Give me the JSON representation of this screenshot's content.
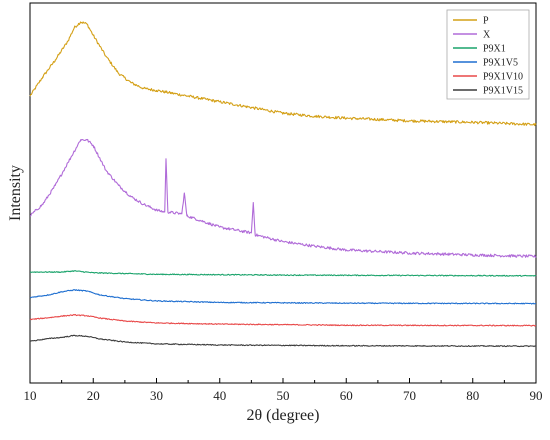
{
  "chart_data": {
    "type": "line",
    "xlabel": "2θ (degree)",
    "ylabel": "Intensity",
    "xlim": [
      10,
      90
    ],
    "x_ticks": [
      10,
      20,
      30,
      40,
      50,
      60,
      70,
      80,
      90
    ],
    "y_ticks_labeled": false,
    "legend_position": "top-right",
    "grid": false,
    "series": [
      {
        "name": "P",
        "color": "#d4a017",
        "points": [
          [
            10,
            0.755
          ],
          [
            12,
            0.805
          ],
          [
            14,
            0.85
          ],
          [
            16,
            0.9
          ],
          [
            17,
            0.935
          ],
          [
            18,
            0.95
          ],
          [
            19,
            0.945
          ],
          [
            20,
            0.915
          ],
          [
            22,
            0.86
          ],
          [
            24,
            0.815
          ],
          [
            26,
            0.79
          ],
          [
            28,
            0.775
          ],
          [
            30,
            0.77
          ],
          [
            35,
            0.755
          ],
          [
            40,
            0.74
          ],
          [
            45,
            0.725
          ],
          [
            50,
            0.71
          ],
          [
            55,
            0.702
          ],
          [
            60,
            0.697
          ],
          [
            70,
            0.69
          ],
          [
            80,
            0.686
          ],
          [
            90,
            0.68
          ]
        ]
      },
      {
        "name": "X",
        "color": "#b06bd8",
        "points": [
          [
            10,
            0.44
          ],
          [
            12,
            0.47
          ],
          [
            14,
            0.52
          ],
          [
            16,
            0.58
          ],
          [
            17,
            0.61
          ],
          [
            18,
            0.64
          ],
          [
            19,
            0.64
          ],
          [
            20,
            0.625
          ],
          [
            22,
            0.56
          ],
          [
            24,
            0.52
          ],
          [
            26,
            0.49
          ],
          [
            28,
            0.47
          ],
          [
            30,
            0.455
          ],
          [
            31.3,
            0.45
          ],
          [
            31.5,
            0.59
          ],
          [
            31.8,
            0.45
          ],
          [
            34,
            0.445
          ],
          [
            34.4,
            0.5
          ],
          [
            34.8,
            0.44
          ],
          [
            40,
            0.41
          ],
          [
            45,
            0.395
          ],
          [
            45.3,
            0.475
          ],
          [
            45.6,
            0.39
          ],
          [
            50,
            0.372
          ],
          [
            55,
            0.36
          ],
          [
            60,
            0.35
          ],
          [
            70,
            0.342
          ],
          [
            80,
            0.337
          ],
          [
            90,
            0.333
          ]
        ]
      },
      {
        "name": "P9X1",
        "color": "#1aa36b",
        "points": [
          [
            10,
            0.292
          ],
          [
            15,
            0.292
          ],
          [
            17,
            0.295
          ],
          [
            20,
            0.29
          ],
          [
            30,
            0.286
          ],
          [
            50,
            0.284
          ],
          [
            70,
            0.283
          ],
          [
            90,
            0.282
          ]
        ]
      },
      {
        "name": "P9X1V5",
        "color": "#1f6fd0",
        "points": [
          [
            10,
            0.225
          ],
          [
            13,
            0.232
          ],
          [
            15,
            0.24
          ],
          [
            17,
            0.245
          ],
          [
            19,
            0.242
          ],
          [
            21,
            0.232
          ],
          [
            25,
            0.222
          ],
          [
            30,
            0.216
          ],
          [
            40,
            0.212
          ],
          [
            60,
            0.21
          ],
          [
            90,
            0.209
          ]
        ]
      },
      {
        "name": "P9X1V10",
        "color": "#e84848",
        "points": [
          [
            10,
            0.167
          ],
          [
            13,
            0.172
          ],
          [
            15,
            0.176
          ],
          [
            17,
            0.179
          ],
          [
            19,
            0.177
          ],
          [
            21,
            0.171
          ],
          [
            25,
            0.163
          ],
          [
            30,
            0.158
          ],
          [
            40,
            0.155
          ],
          [
            60,
            0.152
          ],
          [
            90,
            0.151
          ]
        ]
      },
      {
        "name": "P9X1V15",
        "color": "#3c3c3c",
        "points": [
          [
            10,
            0.11
          ],
          [
            13,
            0.117
          ],
          [
            15,
            0.12
          ],
          [
            17,
            0.125
          ],
          [
            19,
            0.123
          ],
          [
            21,
            0.116
          ],
          [
            25,
            0.108
          ],
          [
            30,
            0.103
          ],
          [
            40,
            0.1
          ],
          [
            60,
            0.098
          ],
          [
            90,
            0.097
          ]
        ]
      }
    ]
  }
}
